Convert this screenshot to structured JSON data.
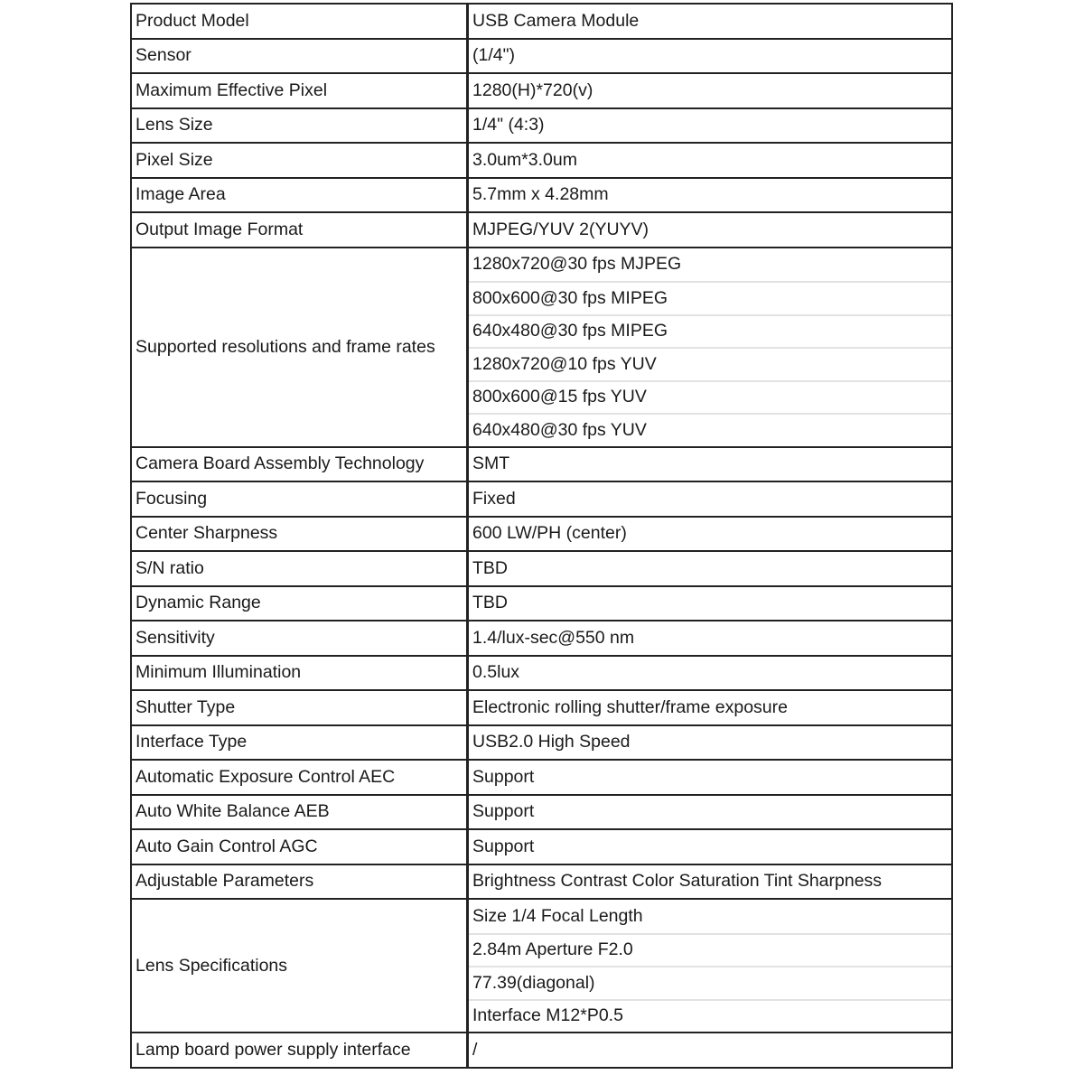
{
  "spec_table": {
    "rows": [
      {
        "label": "Product Model",
        "values": [
          "USB Camera Module"
        ]
      },
      {
        "label": "Sensor",
        "values": [
          "(1/4\")"
        ]
      },
      {
        "label": "Maximum Effective Pixel",
        "values": [
          "1280(H)*720(v)"
        ]
      },
      {
        "label": "Lens Size",
        "values": [
          "1/4\" (4:3)"
        ]
      },
      {
        "label": "Pixel Size",
        "values": [
          "3.0um*3.0um"
        ]
      },
      {
        "label": "Image Area",
        "values": [
          "5.7mm x 4.28mm"
        ]
      },
      {
        "label": "Output Image Format",
        "values": [
          "MJPEG/YUV 2(YUYV)"
        ]
      },
      {
        "label": "Supported resolutions and frame rates",
        "values": [
          "1280x720@30 fps MJPEG",
          "800x600@30 fps MIPEG",
          "640x480@30 fps MIPEG",
          "1280x720@10 fps YUV",
          "800x600@15 fps YUV",
          "640x480@30 fps YUV"
        ]
      },
      {
        "label": "Camera Board Assembly Technology",
        "values": [
          "SMT"
        ]
      },
      {
        "label": "Focusing",
        "values": [
          "Fixed"
        ]
      },
      {
        "label": "Center Sharpness",
        "values": [
          "600 LW/PH (center)"
        ]
      },
      {
        "label": "S/N ratio",
        "values": [
          "TBD"
        ]
      },
      {
        "label": "Dynamic Range",
        "values": [
          "TBD"
        ]
      },
      {
        "label": "Sensitivity",
        "values": [
          "1.4/lux-sec@550 nm"
        ]
      },
      {
        "label": "Minimum Illumination",
        "values": [
          "0.5lux"
        ]
      },
      {
        "label": "Shutter Type",
        "values": [
          "Electronic rolling shutter/frame exposure"
        ]
      },
      {
        "label": "Interface Type",
        "values": [
          "USB2.0 High Speed"
        ]
      },
      {
        "label": "Automatic Exposure Control AEC",
        "values": [
          "Support"
        ]
      },
      {
        "label": "Auto White Balance AEB",
        "values": [
          "Support"
        ]
      },
      {
        "label": "Auto Gain Control AGC",
        "values": [
          "Support"
        ]
      },
      {
        "label": "Adjustable Parameters",
        "values": [
          "Brightness Contrast Color Saturation Tint Sharpness"
        ]
      },
      {
        "label": "Lens Specifications",
        "values": [
          "Size 1/4 Focal Length",
          "2.84m Aperture F2.0",
          "77.39(diagonal)",
          "Interface M12*P0.5"
        ]
      },
      {
        "label": "Lamp board power supply interface",
        "values": [
          "/"
        ]
      }
    ]
  }
}
